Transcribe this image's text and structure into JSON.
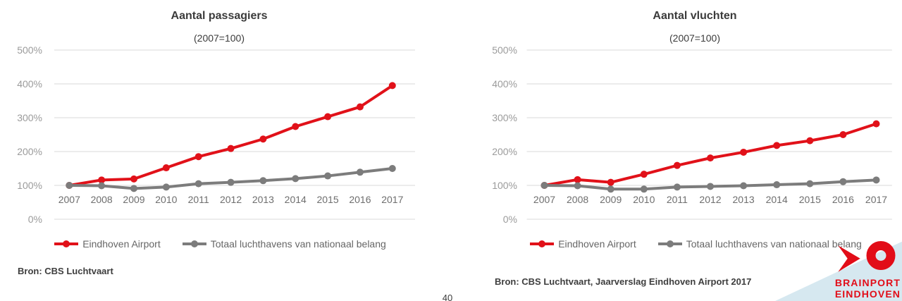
{
  "page_number": "40",
  "chart_data": [
    {
      "type": "line",
      "title": "Aantal passagiers",
      "subtitle": "(2007=100)",
      "x": [
        2007,
        2008,
        2009,
        2010,
        2011,
        2012,
        2013,
        2014,
        2015,
        2016,
        2017
      ],
      "series": [
        {
          "name": "Eindhoven Airport",
          "color": "#e11119",
          "values": [
            100,
            116,
            119,
            152,
            185,
            209,
            237,
            274,
            303,
            332,
            395
          ]
        },
        {
          "name": "Totaal luchthavens van nationaal belang",
          "color": "#7c7c7c",
          "values": [
            100,
            99,
            91,
            95,
            105,
            109,
            114,
            120,
            128,
            139,
            150
          ]
        }
      ],
      "ylim": [
        0,
        500
      ],
      "yticks": [
        "0%",
        "100%",
        "200%",
        "300%",
        "400%",
        "500%"
      ],
      "grid": true,
      "legend_position": "bottom",
      "source": "Bron: CBS Luchtvaart"
    },
    {
      "type": "line",
      "title": "Aantal vluchten",
      "subtitle": "(2007=100)",
      "x": [
        2007,
        2008,
        2009,
        2010,
        2011,
        2012,
        2013,
        2014,
        2015,
        2016,
        2017
      ],
      "series": [
        {
          "name": "Eindhoven Airport",
          "color": "#e11119",
          "values": [
            100,
            117,
            109,
            133,
            159,
            181,
            198,
            218,
            232,
            250,
            282
          ]
        },
        {
          "name": "Totaal luchthavens van nationaal belang",
          "color": "#7c7c7c",
          "values": [
            100,
            99,
            89,
            89,
            95,
            97,
            99,
            102,
            105,
            111,
            116
          ]
        }
      ],
      "ylim": [
        0,
        500
      ],
      "yticks": [
        "0%",
        "100%",
        "200%",
        "300%",
        "400%",
        "500%"
      ],
      "grid": true,
      "legend_position": "bottom",
      "source": "Bron: CBS Luchtvaart, Jaarverslag Eindhoven Airport 2017"
    }
  ],
  "logo": {
    "line1": "BRAINPORT",
    "line2": "EINDHOVEN",
    "colors": {
      "red": "#e20d18",
      "blue": "#d6e8f0"
    }
  }
}
